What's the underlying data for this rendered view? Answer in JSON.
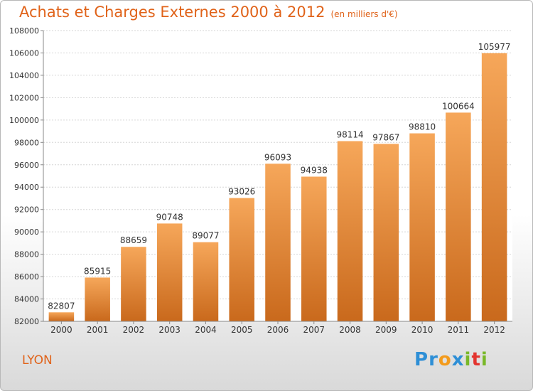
{
  "title": "Achats et Charges Externes 2000 à 2012",
  "subtitle": "(en milliers d'€)",
  "city": "LYON",
  "logo": {
    "letters": [
      "P",
      "r",
      "o",
      "x",
      "i",
      "t",
      "i"
    ],
    "colors": [
      "#2e8fd6",
      "#2e8fd6",
      "#f39b1c",
      "#2e8fd6",
      "#79b829",
      "#e3342f",
      "#79b829"
    ]
  },
  "colors": {
    "bar_light": "#f6a75a",
    "bar_dark": "#c9691c",
    "text": "#e0631a"
  },
  "chart_data": {
    "type": "bar",
    "title": "Achats et Charges Externes 2000 à 2012",
    "subtitle": "(en milliers d'€)",
    "categories": [
      "2000",
      "2001",
      "2002",
      "2003",
      "2004",
      "2005",
      "2006",
      "2007",
      "2008",
      "2009",
      "2010",
      "2011",
      "2012"
    ],
    "values": [
      82807,
      85915,
      88659,
      90748,
      89077,
      93026,
      96093,
      94938,
      98114,
      97867,
      98810,
      100664,
      105977
    ],
    "ylim": [
      82000,
      108000
    ],
    "yticks": [
      82000,
      84000,
      86000,
      88000,
      90000,
      92000,
      94000,
      96000,
      98000,
      100000,
      102000,
      104000,
      106000,
      108000
    ],
    "grid": true,
    "data_labels": true
  }
}
